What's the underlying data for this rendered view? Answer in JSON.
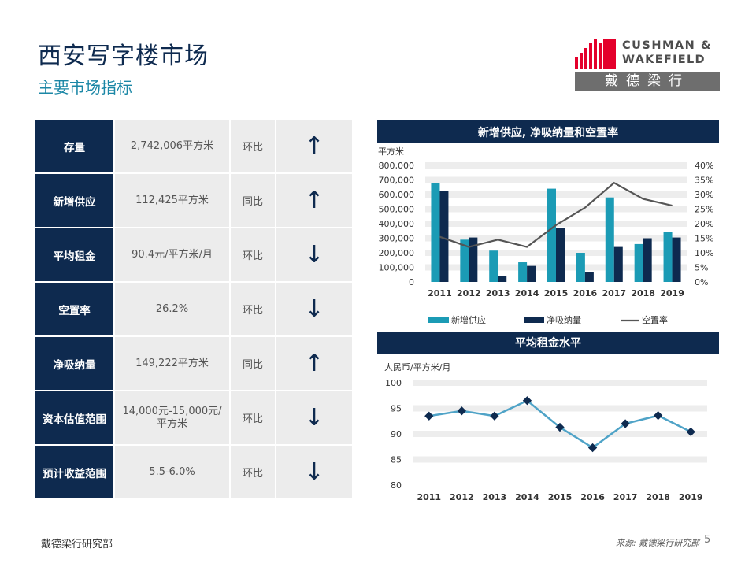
{
  "header": {
    "title": "西安写字楼市场",
    "subtitle": "主要市场指标"
  },
  "logo": {
    "line1": "CUSHMAN &",
    "line2": "WAKEFIELD",
    "cn": "戴德梁行",
    "color_red": "#e4002b",
    "color_gray": "#6e6e6e"
  },
  "kpi": [
    {
      "label": "存量",
      "value": "2,742,006平方米",
      "compare": "环比",
      "trend": "↑"
    },
    {
      "label": "新增供应",
      "value": "112,425平方米",
      "compare": "同比",
      "trend": "↑"
    },
    {
      "label": "平均租金",
      "value": "90.4元/平方米/月",
      "compare": "环比",
      "trend": "↓"
    },
    {
      "label": "空置率",
      "value": "26.2%",
      "compare": "环比",
      "trend": "↓"
    },
    {
      "label": "净吸纳量",
      "value": "149,222平方米",
      "compare": "同比",
      "trend": "↑"
    },
    {
      "label": "资本估值范围",
      "value": "14,000元-15,000元/平方米",
      "compare": "环比",
      "trend": "↓"
    },
    {
      "label": "预计收益范围",
      "value": "5.5-6.0%",
      "compare": "环比",
      "trend": "↓"
    }
  ],
  "colors": {
    "navy": "#0e2a4f",
    "teal": "#1b9bb5",
    "line_gray": "#555555",
    "rent_line": "#4fa3c7",
    "rent_marker": "#0e2a4f",
    "cell_bg": "#ececec"
  },
  "chart_data": [
    {
      "type": "bar",
      "title": "新增供应, 净吸纳量和空置率",
      "ylabel": "平方米",
      "categories": [
        "2011",
        "2012",
        "2013",
        "2014",
        "2015",
        "2016",
        "2017",
        "2018",
        "2019"
      ],
      "ylim": [
        0,
        800000
      ],
      "yticks": [
        "800,000",
        "700,000",
        "600,000",
        "500,000",
        "400,000",
        "300,000",
        "200,000",
        "100,000",
        "0"
      ],
      "y2lim": [
        0,
        40
      ],
      "y2ticks": [
        "40%",
        "35%",
        "30%",
        "25%",
        "20%",
        "15%",
        "10%",
        "5%",
        "0%"
      ],
      "series": [
        {
          "name": "新增供应",
          "kind": "bar",
          "values": [
            680000,
            290000,
            215000,
            135000,
            640000,
            200000,
            580000,
            260000,
            345000
          ]
        },
        {
          "name": "净吸纳量",
          "kind": "bar",
          "values": [
            625000,
            305000,
            40000,
            110000,
            370000,
            65000,
            240000,
            300000,
            305000
          ]
        },
        {
          "name": "空置率",
          "kind": "line",
          "axis": "right",
          "values": [
            15.5,
            12.0,
            14.5,
            12.0,
            19.5,
            25.5,
            34.0,
            28.5,
            26.2
          ]
        }
      ],
      "grid": true,
      "legend": "bottom"
    },
    {
      "type": "line",
      "title": "平均租金水平",
      "ylabel": "人民币/平方米/月",
      "categories": [
        "2011",
        "2012",
        "2013",
        "2014",
        "2015",
        "2016",
        "2017",
        "2018",
        "2019"
      ],
      "ylim": [
        80,
        100
      ],
      "yticks": [
        "100",
        "95",
        "90",
        "85",
        "80"
      ],
      "series": [
        {
          "values": [
            93.5,
            94.5,
            93.5,
            96.5,
            91.3,
            87.3,
            92.0,
            93.6,
            90.4
          ]
        }
      ],
      "grid": true
    }
  ],
  "footer": {
    "left": "戴德梁行研究部",
    "source": "来源: 戴德梁行研究部",
    "page": "5"
  }
}
